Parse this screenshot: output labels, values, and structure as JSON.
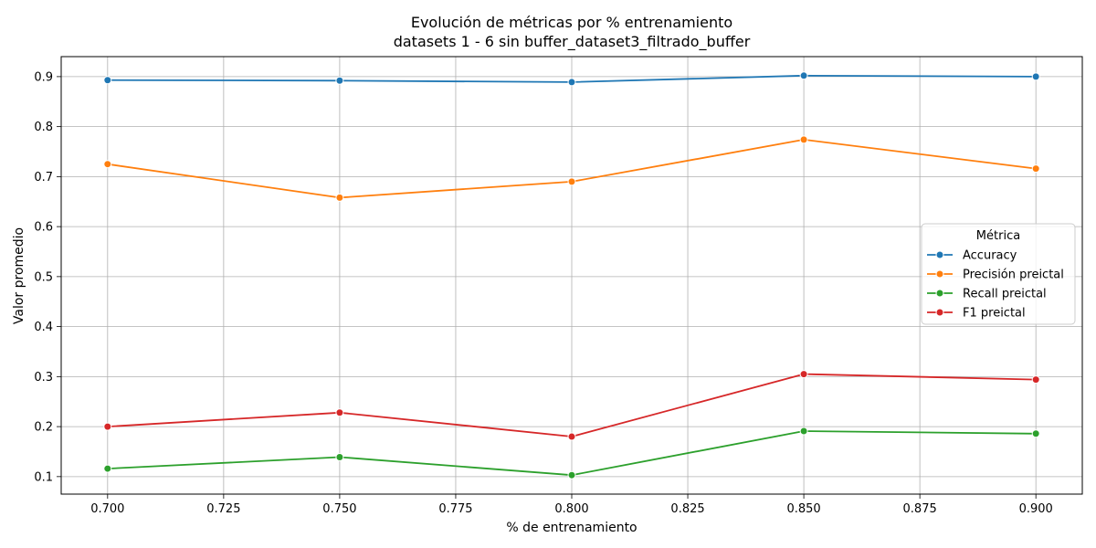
{
  "chart_data": {
    "type": "line",
    "title": "Evolución de métricas por % entrenamiento",
    "subtitle": "datasets 1 - 6 sin buffer_dataset3_filtrado_buffer",
    "xlabel": "% de entrenamiento",
    "ylabel": "Valor promedio",
    "xlim": [
      0.69,
      0.91
    ],
    "ylim": [
      0.065,
      0.94
    ],
    "grid": true,
    "x_ticks": [
      "0.700",
      "0.725",
      "0.750",
      "0.775",
      "0.800",
      "0.825",
      "0.850",
      "0.875",
      "0.900"
    ],
    "y_ticks": [
      "0.1",
      "0.2",
      "0.3",
      "0.4",
      "0.5",
      "0.6",
      "0.7",
      "0.8",
      "0.9"
    ],
    "x": [
      0.7,
      0.75,
      0.8,
      0.85,
      0.9
    ],
    "legend": {
      "title": "Métrica",
      "position": "right"
    },
    "series": [
      {
        "name": "Accuracy",
        "color": "#1f77b4",
        "values": [
          0.893,
          0.892,
          0.889,
          0.902,
          0.9
        ]
      },
      {
        "name": "Precisión preictal",
        "color": "#ff7f0e",
        "values": [
          0.725,
          0.658,
          0.69,
          0.774,
          0.716
        ]
      },
      {
        "name": "Recall preictal",
        "color": "#2ca02c",
        "values": [
          0.116,
          0.139,
          0.103,
          0.191,
          0.186
        ]
      },
      {
        "name": "F1 preictal",
        "color": "#d62728",
        "values": [
          0.2,
          0.228,
          0.18,
          0.305,
          0.294
        ]
      }
    ]
  }
}
